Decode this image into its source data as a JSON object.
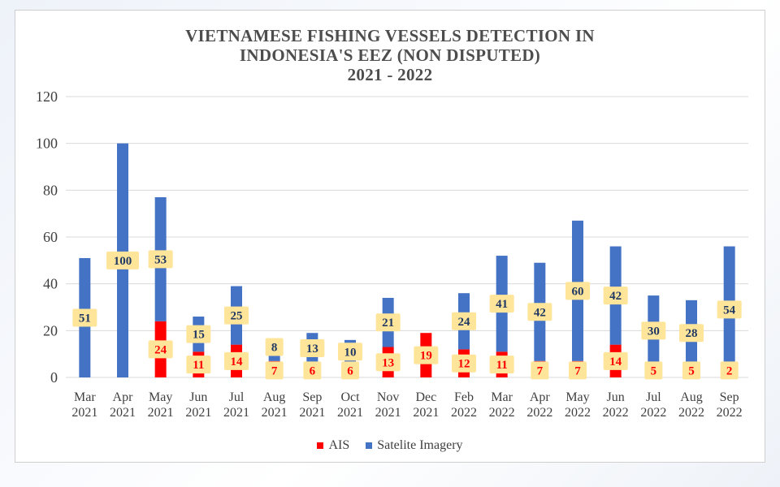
{
  "chart_data": {
    "type": "bar",
    "stacked": true,
    "title_lines": [
      "VIETNAMESE FISHING VESSELS DETECTION IN",
      "INDONESIA'S EEZ (NON DISPUTED)",
      "2021 - 2022"
    ],
    "xlabel": "",
    "ylabel": "",
    "ylim": [
      0,
      120
    ],
    "yticks": [
      0,
      20,
      40,
      60,
      80,
      100,
      120
    ],
    "grid": true,
    "legend_position": "bottom",
    "categories": [
      [
        "Mar",
        "2021"
      ],
      [
        "Apr",
        "2021"
      ],
      [
        "May",
        "2021"
      ],
      [
        "Jun",
        "2021"
      ],
      [
        "Jul",
        "2021"
      ],
      [
        "Aug",
        "2021"
      ],
      [
        "Sep",
        "2021"
      ],
      [
        "Oct",
        "2021"
      ],
      [
        "Nov",
        "2021"
      ],
      [
        "Dec",
        "2021"
      ],
      [
        "Feb",
        "2022"
      ],
      [
        "Mar",
        "2022"
      ],
      [
        "Apr",
        "2022"
      ],
      [
        "May",
        "2022"
      ],
      [
        "Jun",
        "2022"
      ],
      [
        "Jul",
        "2022"
      ],
      [
        "Aug",
        "2022"
      ],
      [
        "Sep",
        "2022"
      ]
    ],
    "series": [
      {
        "name": "AIS",
        "color": "#ff0000",
        "label_color": "#ff0000",
        "values": [
          0,
          0,
          24,
          11,
          14,
          7,
          6,
          6,
          13,
          19,
          12,
          11,
          7,
          7,
          14,
          5,
          5,
          2
        ],
        "labels": [
          null,
          null,
          "24",
          "11",
          "14",
          "7",
          "6",
          "6",
          "13",
          "19",
          "12",
          "11",
          "7",
          "7",
          "14",
          "5",
          "5",
          "2"
        ]
      },
      {
        "name": "Satelite Imagery",
        "color": "#4472c4",
        "label_color": "#1f3864",
        "values": [
          51,
          100,
          53,
          15,
          25,
          8,
          13,
          10,
          21,
          0,
          24,
          41,
          42,
          60,
          42,
          30,
          28,
          54
        ],
        "labels": [
          "51",
          "100",
          "53",
          "15",
          "25",
          "8",
          "13",
          "10",
          "21",
          null,
          "24",
          "41",
          "42",
          "60",
          "42",
          "30",
          "28",
          "54"
        ]
      }
    ],
    "data_label_bg": "#ffe599"
  }
}
